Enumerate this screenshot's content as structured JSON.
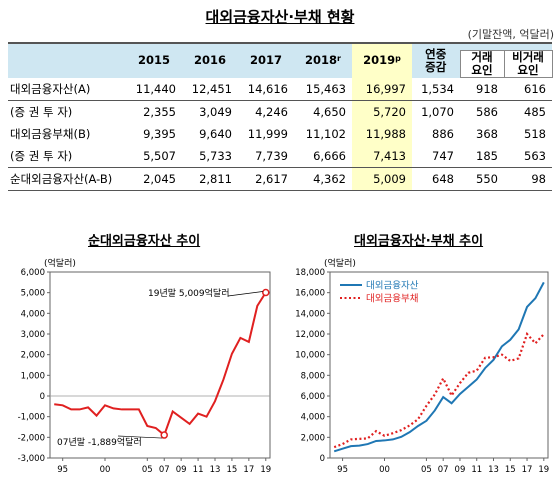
{
  "title": "대외금융자산·부채 현황",
  "unit": "(기말잔액, 억달러)",
  "table": {
    "years": [
      {
        "label": "2015",
        "sup": ""
      },
      {
        "label": "2016",
        "sup": ""
      },
      {
        "label": "2017",
        "sup": ""
      },
      {
        "label": "2018",
        "sup": "r"
      },
      {
        "label": "2019",
        "sup": "p"
      }
    ],
    "change_header": "연중 증감",
    "sub_headers": [
      "거래 요인",
      "비거래 요인"
    ],
    "rows": [
      {
        "label": "대외금융자산(A)",
        "values": [
          "11,440",
          "12,451",
          "14,616",
          "15,463",
          "16,997"
        ],
        "change": "1,534",
        "trade": "918",
        "nontrade": "616"
      },
      {
        "label": "(증 권 투 자)",
        "values": [
          "2,355",
          "3,049",
          "4,246",
          "4,650",
          "5,720"
        ],
        "change": "1,070",
        "trade": "586",
        "nontrade": "485"
      },
      {
        "label": "대외금융부채(B)",
        "values": [
          "9,395",
          "9,640",
          "11,999",
          "11,102",
          "11,988"
        ],
        "change": "886",
        "trade": "368",
        "nontrade": "518"
      },
      {
        "label": "(증 권 투 자)",
        "values": [
          "5,507",
          "5,733",
          "7,739",
          "6,666",
          "7,413"
        ],
        "change": "747",
        "trade": "185",
        "nontrade": "563"
      },
      {
        "label": "순대외금융자산(A-B)",
        "values": [
          "2,045",
          "2,811",
          "2,617",
          "4,362",
          "5,009"
        ],
        "change": "648",
        "trade": "550",
        "nontrade": "98"
      }
    ]
  },
  "chart_data": [
    {
      "type": "line",
      "title": "순대외금융자산 추이",
      "ylabel": "(억달러)",
      "ylim": [
        -3000,
        6000
      ],
      "yticks": [
        "6,000",
        "5,000",
        "4,000",
        "3,000",
        "2,000",
        "1,000",
        "0",
        "-1,000",
        "-2,000",
        "-3,000"
      ],
      "xticks": [
        "95",
        "00",
        "05",
        "07",
        "09",
        "11",
        "13",
        "15",
        "17",
        "19"
      ],
      "annotations": [
        "19년말 5,009억달러",
        "07년말 -1,889억달러"
      ],
      "color": "#e02020",
      "series": [
        {
          "x": [
            1994,
            1995,
            1996,
            1997,
            1998,
            1999,
            2000,
            2001,
            2002,
            2003,
            2004,
            2005,
            2006,
            2007,
            2008,
            2009,
            2010,
            2011,
            2012,
            2013,
            2014,
            2015,
            2016,
            2017,
            2018,
            2019
          ],
          "values": [
            -400,
            -450,
            -650,
            -650,
            -550,
            -950,
            -450,
            -600,
            -650,
            -650,
            -650,
            -1450,
            -1550,
            -1889,
            -750,
            -1050,
            -1350,
            -850,
            -1000,
            -250,
            800,
            2045,
            2811,
            2617,
            4362,
            5009
          ]
        }
      ]
    },
    {
      "type": "line",
      "title": "대외금융자산·부채 추이",
      "ylabel": "(억달러)",
      "ylim": [
        0,
        18000
      ],
      "yticks": [
        "18,000",
        "16,000",
        "14,000",
        "12,000",
        "10,000",
        "8,000",
        "6,000",
        "4,000",
        "2,000",
        "0"
      ],
      "xticks": [
        "95",
        "00",
        "05",
        "07",
        "09",
        "11",
        "13",
        "15",
        "17",
        "19"
      ],
      "legend": "top-left",
      "series": [
        {
          "name": "대외금융자산",
          "color": "#1f77b4",
          "style": "solid",
          "x": [
            1994,
            1995,
            1996,
            1997,
            1998,
            1999,
            2000,
            2001,
            2002,
            2003,
            2004,
            2005,
            2006,
            2007,
            2008,
            2009,
            2010,
            2011,
            2012,
            2013,
            2014,
            2015,
            2016,
            2017,
            2018,
            2019
          ],
          "values": [
            650,
            900,
            1150,
            1200,
            1350,
            1650,
            1700,
            1800,
            2050,
            2500,
            3100,
            3600,
            4600,
            5900,
            5300,
            6200,
            6900,
            7600,
            8700,
            9500,
            10800,
            11440,
            12451,
            14616,
            15463,
            16997
          ]
        },
        {
          "name": "대외금융부채",
          "color": "#e02020",
          "style": "dotted",
          "x": [
            1994,
            1995,
            1996,
            1997,
            1998,
            1999,
            2000,
            2001,
            2002,
            2003,
            2004,
            2005,
            2006,
            2007,
            2008,
            2009,
            2010,
            2011,
            2012,
            2013,
            2014,
            2015,
            2016,
            2017,
            2018,
            2019
          ],
          "values": [
            1050,
            1350,
            1800,
            1850,
            1900,
            2600,
            2150,
            2400,
            2700,
            3150,
            3750,
            5050,
            6150,
            7700,
            6050,
            7250,
            8250,
            8450,
            9700,
            9750,
            10000,
            9395,
            9640,
            11999,
            11102,
            11988
          ]
        }
      ]
    }
  ]
}
